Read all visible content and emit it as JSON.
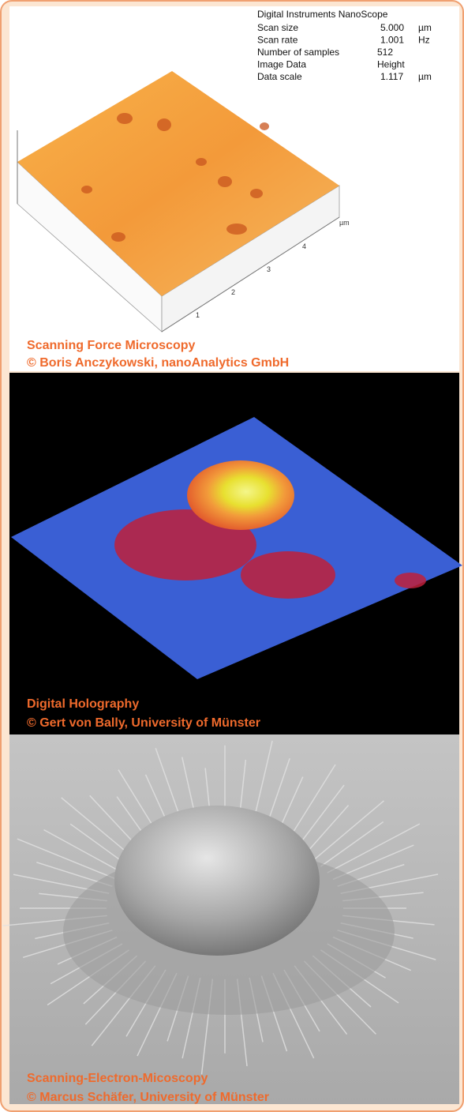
{
  "panels": [
    {
      "caption": [
        "Scanning Force Microscopy",
        "© Boris Anczykowski, nanoAnalytics GmbH"
      ],
      "info": {
        "title": "Digital Instruments NanoScope",
        "rows": [
          [
            "Scan size",
            "5.000",
            "µm"
          ],
          [
            "Scan rate",
            "1.001",
            "Hz"
          ],
          [
            "Number of samples",
            "512"
          ],
          [
            "Image Data",
            "Height"
          ],
          [
            "Data scale",
            "1.117",
            "µm"
          ]
        ]
      },
      "axis": {
        "ticks": [
          "1",
          "2",
          "3",
          "4"
        ],
        "unit": "µm"
      }
    },
    {
      "caption": [
        "Digital Holography",
        "© Gert von Bally, University of Münster"
      ]
    },
    {
      "caption": [
        "Scanning-Electron-Micoscopy",
        "© Marcus Schäfer, University of Münster"
      ]
    }
  ]
}
